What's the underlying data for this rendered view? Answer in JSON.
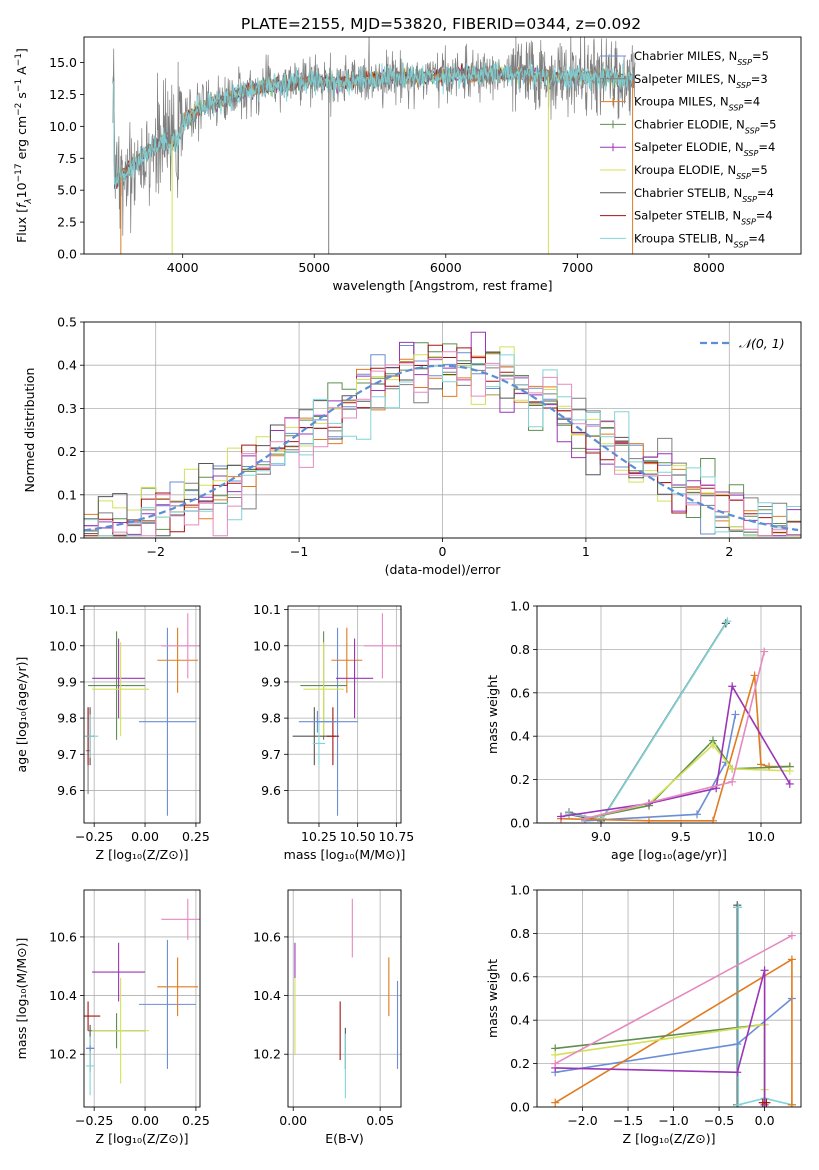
{
  "figure": {
    "title": "PLATE=2155, MJD=53820, FIBERID=0344, z=0.092",
    "colors": {
      "chabrier_miles": "#6b8ed6",
      "salpeter_miles": "#7f7f7f",
      "kroupa_miles": "#e07b20",
      "chabrier_elodie": "#5f8f4f",
      "salpeter_elodie": "#9b35b8",
      "kroupa_elodie": "#d4e157",
      "chabrier_stelib": "#555555",
      "salpeter_stelib": "#a31515",
      "kroupa_stelib": "#80d4d8",
      "pink": "#e58ac0",
      "gauss": "#5b8ed6",
      "grid": "#b0b0b0"
    }
  },
  "chart_data": [
    {
      "id": "spectrum",
      "type": "line",
      "xlabel": "wavelength [Angstrom, rest frame]",
      "ylabel_parts": [
        "Flux [",
        "f",
        "λ",
        "10",
        "−17",
        " erg cm",
        "−2",
        " s",
        "−1",
        " A",
        "−1",
        "]"
      ],
      "xlim": [
        3250,
        8700
      ],
      "ylim": [
        0,
        17
      ],
      "xticks": [
        4000,
        5000,
        6000,
        7000,
        8000
      ],
      "yticks": [
        0.0,
        2.5,
        5.0,
        7.5,
        10.0,
        12.5,
        15.0
      ],
      "grid": false,
      "legend_position": "top-right",
      "legend": [
        {
          "label": "Chabrier MILES, N",
          "sub": "SSP",
          "tail": "=5",
          "color_key": "chabrier_miles",
          "marker": "none"
        },
        {
          "label": "Salpeter MILES, N",
          "sub": "SSP",
          "tail": "=3",
          "color_key": "salpeter_miles",
          "marker": "none"
        },
        {
          "label": "Kroupa MILES, N",
          "sub": "SSP",
          "tail": "=4",
          "color_key": "kroupa_miles",
          "marker": "plus"
        },
        {
          "label": "Chabrier ELODIE, N",
          "sub": "SSP",
          "tail": "=5",
          "color_key": "chabrier_elodie",
          "marker": "plus"
        },
        {
          "label": "Salpeter ELODIE, N",
          "sub": "SSP",
          "tail": "=4",
          "color_key": "salpeter_elodie",
          "marker": "plus"
        },
        {
          "label": "Kroupa ELODIE, N",
          "sub": "SSP",
          "tail": "=5",
          "color_key": "kroupa_elodie",
          "marker": "none"
        },
        {
          "label": "Chabrier STELIB, N",
          "sub": "SSP",
          "tail": "=4",
          "color_key": "chabrier_stelib",
          "marker": "none"
        },
        {
          "label": "Salpeter STELIB, N",
          "sub": "SSP",
          "tail": "=4",
          "color_key": "salpeter_stelib",
          "marker": "none"
        },
        {
          "label": "Kroupa STELIB, N",
          "sub": "SSP",
          "tail": "=4",
          "color_key": "kroupa_stelib",
          "marker": "none"
        }
      ],
      "continuum": [
        [
          3480,
          5.5
        ],
        [
          3600,
          6.8
        ],
        [
          3700,
          7.8
        ],
        [
          3800,
          8.5
        ],
        [
          3900,
          9.0
        ],
        [
          3960,
          8.8
        ],
        [
          4000,
          10.3
        ],
        [
          4100,
          11.2
        ],
        [
          4200,
          11.8
        ],
        [
          4300,
          12.0
        ],
        [
          4400,
          12.5
        ],
        [
          4600,
          13.1
        ],
        [
          4800,
          13.3
        ],
        [
          5000,
          13.6
        ],
        [
          5200,
          13.4
        ],
        [
          5400,
          13.7
        ],
        [
          5600,
          13.9
        ],
        [
          5800,
          13.8
        ],
        [
          6000,
          14.0
        ],
        [
          6200,
          14.0
        ],
        [
          6400,
          14.1
        ],
        [
          6600,
          14.1
        ],
        [
          6800,
          13.9
        ],
        [
          7000,
          13.9
        ],
        [
          7200,
          13.8
        ],
        [
          7440,
          13.6
        ]
      ],
      "data_range": [
        3470,
        7440
      ],
      "model_range": [
        3470,
        7420
      ],
      "spikes": [
        {
          "x": 3530,
          "y": 0,
          "color_key": "kroupa_miles"
        },
        {
          "x": 3920,
          "y": 0,
          "color_key": "kroupa_elodie"
        },
        {
          "x": 5110,
          "y": 0,
          "color_key": "salpeter_miles"
        },
        {
          "x": 6780,
          "y": 0,
          "color_key": "kroupa_elodie"
        },
        {
          "x": 7420,
          "y": 0,
          "color_key": "kroupa_miles"
        }
      ]
    },
    {
      "id": "residuals",
      "type": "step",
      "xlabel": "(data-model)/error",
      "ylabel": "Normed distribution",
      "xlim": [
        -2.5,
        2.5
      ],
      "ylim": [
        0,
        0.5
      ],
      "xticks": [
        -2,
        -1,
        0,
        1,
        2
      ],
      "yticks": [
        0.0,
        0.1,
        0.2,
        0.3,
        0.4,
        0.5
      ],
      "grid": true,
      "legend_position": "top-right",
      "gauss_label": "𝒩(0, 1)",
      "bins": {
        "start": -2.5,
        "width": 0.1
      }
    },
    {
      "id": "age_vs_Z",
      "type": "errorbar",
      "xlabel": "Z [log₁₀(Z/Z⊙)]",
      "ylabel": "age  [log₁₀(age/yr)]",
      "xlim": [
        -0.3,
        0.27
      ],
      "ylim": [
        9.51,
        10.11
      ],
      "xticks": [
        -0.25,
        0.0,
        0.25
      ],
      "yticks": [
        9.6,
        9.7,
        9.8,
        9.9,
        10.0,
        10.1
      ],
      "grid": true,
      "points": [
        {
          "color_key": "chabrier_miles",
          "x": 0.11,
          "y": 9.79,
          "xerr": 0.14,
          "yerr": 0.26
        },
        {
          "color_key": "salpeter_miles",
          "x": -0.28,
          "y": 9.71,
          "xerr": 0.01,
          "yerr": 0.12
        },
        {
          "color_key": "kroupa_miles",
          "x": 0.16,
          "y": 9.96,
          "xerr": 0.1,
          "yerr": 0.09
        },
        {
          "color_key": "chabrier_elodie",
          "x": -0.14,
          "y": 9.89,
          "xerr": 0.14,
          "yerr": 0.15
        },
        {
          "color_key": "salpeter_elodie",
          "x": -0.13,
          "y": 9.91,
          "xerr": 0.13,
          "yerr": 0.11
        },
        {
          "color_key": "kroupa_elodie",
          "x": -0.12,
          "y": 9.88,
          "xerr": 0.14,
          "yerr": 0.13
        },
        {
          "color_key": "chabrier_stelib",
          "x": -0.27,
          "y": 9.75,
          "xerr": 0.02,
          "yerr": 0.08
        },
        {
          "color_key": "salpeter_stelib",
          "x": -0.28,
          "y": 9.75,
          "xerr": 0.01,
          "yerr": 0.08
        },
        {
          "color_key": "kroupa_stelib",
          "x": -0.27,
          "y": 9.75,
          "xerr": 0.04,
          "yerr": 0.06
        },
        {
          "color_key": "pink",
          "x": 0.21,
          "y": 10.0,
          "xerr": 0.13,
          "yerr": 0.09
        }
      ]
    },
    {
      "id": "age_vs_mass",
      "type": "errorbar",
      "xlabel": "mass [log₁₀(M/M⊙)]",
      "ylabel": "",
      "xlim": [
        10.05,
        10.78
      ],
      "ylim": [
        9.51,
        10.11
      ],
      "xticks": [
        10.25,
        10.5,
        10.75
      ],
      "yticks": [
        9.6,
        9.7,
        9.8,
        9.9,
        10.0,
        10.1
      ],
      "grid": true,
      "points": [
        {
          "color_key": "chabrier_miles",
          "x": 10.37,
          "y": 9.79,
          "xerr": 0.13,
          "yerr": 0.26
        },
        {
          "color_key": "kroupa_miles",
          "x": 10.43,
          "y": 9.96,
          "xerr": 0.1,
          "yerr": 0.09
        },
        {
          "color_key": "chabrier_elodie",
          "x": 10.28,
          "y": 9.89,
          "xerr": 0.15,
          "yerr": 0.15
        },
        {
          "color_key": "salpeter_elodie",
          "x": 10.48,
          "y": 9.91,
          "xerr": 0.12,
          "yerr": 0.11
        },
        {
          "color_key": "kroupa_elodie",
          "x": 10.28,
          "y": 9.88,
          "xerr": 0.13,
          "yerr": 0.13
        },
        {
          "color_key": "chabrier_stelib",
          "x": 10.22,
          "y": 9.75,
          "xerr": 0.14,
          "yerr": 0.08
        },
        {
          "color_key": "salpeter_stelib",
          "x": 10.34,
          "y": 9.75,
          "xerr": 0.04,
          "yerr": 0.08
        },
        {
          "color_key": "kroupa_stelib",
          "x": 10.25,
          "y": 9.73,
          "xerr": 0.04,
          "yerr": 0.06
        },
        {
          "color_key": "chabrier_miles",
          "x": 10.24,
          "y": 9.79,
          "xerr": 0.12,
          "yerr": 0.03
        },
        {
          "color_key": "pink",
          "x": 10.66,
          "y": 10.0,
          "xerr": 0.12,
          "yerr": 0.09
        }
      ]
    },
    {
      "id": "massweight_vs_age",
      "type": "line",
      "xlabel": "age  [log₁₀(age/yr)]",
      "ylabel": "mass weight",
      "xlim": [
        8.6,
        10.25
      ],
      "ylim": [
        0,
        1
      ],
      "xticks": [
        9.0,
        9.5,
        10.0
      ],
      "yticks": [
        0.0,
        0.2,
        0.4,
        0.6,
        0.8,
        1.0
      ],
      "grid": true,
      "series": [
        {
          "color_key": "salpeter_miles",
          "x": [
            8.8,
            9.0,
            9.78
          ],
          "y": [
            0.05,
            0.01,
            0.92
          ]
        },
        {
          "color_key": "chabrier_stelib",
          "x": [
            8.8,
            9.0,
            9.78
          ],
          "y": [
            0.04,
            0.01,
            0.92
          ]
        },
        {
          "color_key": "kroupa_stelib",
          "x": [
            8.8,
            9.01,
            9.79
          ],
          "y": [
            0.04,
            0.02,
            0.93
          ]
        },
        {
          "color_key": "chabrier_miles",
          "x": [
            8.9,
            9.6,
            9.78,
            9.84
          ],
          "y": [
            0.01,
            0.04,
            0.28,
            0.5
          ]
        },
        {
          "color_key": "kroupa_miles",
          "x": [
            8.75,
            9.3,
            9.7,
            9.96,
            10.0,
            10.05,
            10.18
          ],
          "y": [
            0.02,
            0.01,
            0.01,
            0.68,
            0.27,
            0.26,
            0.26
          ]
        },
        {
          "color_key": "chabrier_elodie",
          "x": [
            8.9,
            9.3,
            9.7,
            9.82,
            10.18
          ],
          "y": [
            0.02,
            0.08,
            0.38,
            0.25,
            0.26
          ]
        },
        {
          "color_key": "kroupa_elodie",
          "x": [
            8.9,
            9.3,
            9.7,
            9.82,
            10.18
          ],
          "y": [
            0.02,
            0.09,
            0.36,
            0.25,
            0.24
          ]
        },
        {
          "color_key": "salpeter_elodie",
          "x": [
            8.75,
            9.3,
            9.72,
            9.82,
            10.18
          ],
          "y": [
            0.03,
            0.09,
            0.16,
            0.63,
            0.18
          ]
        },
        {
          "color_key": "pink",
          "x": [
            8.9,
            9.82,
            10.02
          ],
          "y": [
            0.02,
            0.19,
            0.79
          ]
        }
      ]
    },
    {
      "id": "mass_vs_Z",
      "type": "errorbar",
      "xlabel": "Z [log₁₀(Z/Z⊙)]",
      "ylabel": "mass [log₁₀(M/M⊙)]",
      "xlim": [
        -0.3,
        0.27
      ],
      "ylim": [
        10.02,
        10.76
      ],
      "xticks": [
        -0.25,
        0.0,
        0.25
      ],
      "yticks": [
        10.2,
        10.4,
        10.6
      ],
      "grid": true,
      "points": [
        {
          "color_key": "chabrier_miles",
          "x": 0.11,
          "y": 10.37,
          "xerr": 0.14,
          "yerr": 0.22
        },
        {
          "color_key": "kroupa_miles",
          "x": 0.16,
          "y": 10.43,
          "xerr": 0.1,
          "yerr": 0.1
        },
        {
          "color_key": "chabrier_elodie",
          "x": -0.14,
          "y": 10.28,
          "xerr": 0.14,
          "yerr": 0.06
        },
        {
          "color_key": "salpeter_elodie",
          "x": -0.13,
          "y": 10.48,
          "xerr": 0.13,
          "yerr": 0.1
        },
        {
          "color_key": "kroupa_elodie",
          "x": -0.12,
          "y": 10.28,
          "xerr": 0.14,
          "yerr": 0.18
        },
        {
          "color_key": "chabrier_stelib",
          "x": -0.27,
          "y": 10.22,
          "xerr": 0.02,
          "yerr": 0.08
        },
        {
          "color_key": "salpeter_stelib",
          "x": -0.28,
          "y": 10.33,
          "xerr": 0.06,
          "yerr": 0.05
        },
        {
          "color_key": "kroupa_stelib",
          "x": -0.27,
          "y": 10.16,
          "xerr": 0.02,
          "yerr": 0.1
        },
        {
          "color_key": "chabrier_miles",
          "x": -0.27,
          "y": 10.22,
          "xerr": 0.02,
          "yerr": 0.01
        },
        {
          "color_key": "pink",
          "x": 0.21,
          "y": 10.66,
          "xerr": 0.13,
          "yerr": 0.07
        }
      ]
    },
    {
      "id": "mass_vs_ebv",
      "type": "errorbar",
      "xlabel": "E(B-V)",
      "ylabel": "",
      "xlim": [
        -0.003,
        0.062
      ],
      "ylim": [
        10.02,
        10.76
      ],
      "xticks": [
        0.0,
        0.05
      ],
      "yticks": [
        10.2,
        10.4,
        10.6
      ],
      "grid": true,
      "points": [
        {
          "color_key": "chabrier_miles",
          "x": 0.06,
          "y": 10.3,
          "xerr": 0.0,
          "yerr": 0.15
        },
        {
          "color_key": "kroupa_miles",
          "x": 0.055,
          "y": 10.43,
          "xerr": 0.0,
          "yerr": 0.1
        },
        {
          "color_key": "salpeter_elodie",
          "x": 0.001,
          "y": 10.52,
          "xerr": 0.0,
          "yerr": 0.06
        },
        {
          "color_key": "kroupa_elodie",
          "x": 0.001,
          "y": 10.33,
          "xerr": 0.0,
          "yerr": 0.13
        },
        {
          "color_key": "salpeter_stelib",
          "x": 0.027,
          "y": 10.28,
          "xerr": 0.0,
          "yerr": 0.1
        },
        {
          "color_key": "chabrier_stelib",
          "x": 0.03,
          "y": 10.22,
          "xerr": 0.0,
          "yerr": 0.07
        },
        {
          "color_key": "kroupa_stelib",
          "x": 0.03,
          "y": 10.16,
          "xerr": 0.0,
          "yerr": 0.11
        },
        {
          "color_key": "pink",
          "x": 0.034,
          "y": 10.63,
          "xerr": 0.0,
          "yerr": 0.1
        }
      ]
    },
    {
      "id": "massweight_vs_Z",
      "type": "line",
      "xlabel": "Z [log₁₀(Z/Z⊙)]",
      "ylabel": "mass weight",
      "xlim": [
        -2.5,
        0.4
      ],
      "ylim": [
        0,
        1
      ],
      "xticks": [
        -2.0,
        -1.5,
        -1.0,
        -0.5,
        0.0
      ],
      "yticks": [
        0.0,
        0.2,
        0.4,
        0.6,
        0.8,
        1.0
      ],
      "grid": true,
      "series": [
        {
          "color_key": "salpeter_miles",
          "x": [
            -0.3,
            -0.3
          ],
          "y": [
            0.01,
            0.92
          ]
        },
        {
          "color_key": "chabrier_stelib",
          "x": [
            -0.3,
            -0.3
          ],
          "y": [
            0.01,
            0.93
          ]
        },
        {
          "color_key": "kroupa_stelib",
          "x": [
            -0.29,
            -0.29,
            0.0,
            0.3
          ],
          "y": [
            0.92,
            0.01,
            0.04,
            0.01
          ]
        },
        {
          "color_key": "chabrier_miles",
          "x": [
            -2.3,
            -0.3,
            0.3
          ],
          "y": [
            0.16,
            0.29,
            0.5
          ]
        },
        {
          "color_key": "kroupa_miles",
          "x": [
            -2.3,
            0.3,
            0.3
          ],
          "y": [
            0.02,
            0.68,
            0.01
          ]
        },
        {
          "color_key": "chabrier_elodie",
          "x": [
            -2.3,
            0.0,
            0.0
          ],
          "y": [
            0.27,
            0.38,
            0.02
          ]
        },
        {
          "color_key": "kroupa_elodie",
          "x": [
            -2.3,
            0.0,
            0.0
          ],
          "y": [
            0.24,
            0.38,
            0.08
          ]
        },
        {
          "color_key": "salpeter_elodie",
          "x": [
            -2.3,
            -0.3,
            0.0,
            0.0
          ],
          "y": [
            0.18,
            0.16,
            0.63,
            0.01
          ]
        },
        {
          "color_key": "pink",
          "x": [
            -2.3,
            0.3
          ],
          "y": [
            0.2,
            0.79
          ]
        },
        {
          "color_key": "salpeter_stelib",
          "x": [
            -0.02,
            0.02
          ],
          "y": [
            0.02,
            0.02
          ]
        }
      ]
    }
  ]
}
